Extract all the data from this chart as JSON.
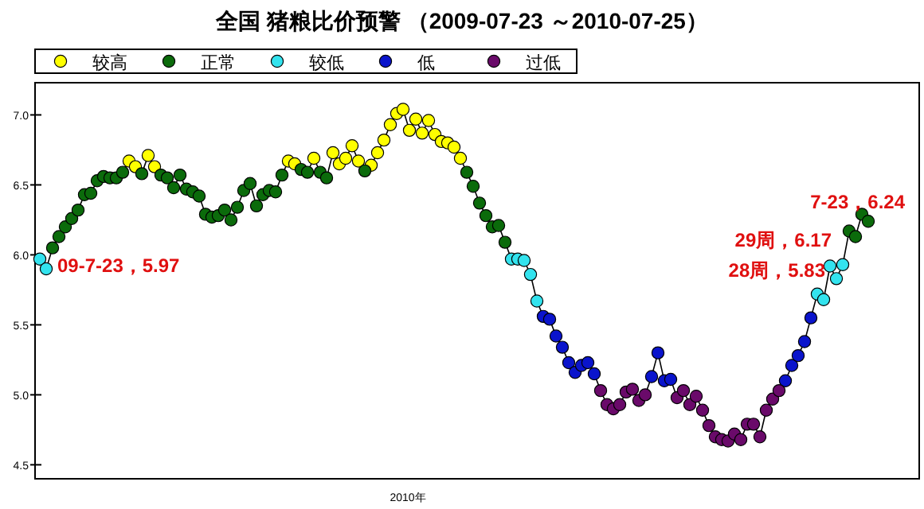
{
  "chart_data": {
    "type": "scatter",
    "title": "全国 猪粮比价预警 （2009-07-23 ～2010-07-25）",
    "categories": [
      null,
      null,
      null,
      null,
      null,
      null,
      null,
      null,
      null,
      null,
      null,
      null,
      null,
      null,
      null,
      null,
      null,
      null,
      null,
      null,
      null,
      null,
      null,
      null,
      null,
      null,
      null,
      null,
      null,
      null,
      null,
      null,
      null,
      null,
      null,
      null,
      null,
      null,
      null,
      null,
      null,
      null,
      null,
      null,
      null,
      null,
      null,
      null,
      null,
      null,
      null,
      null,
      null,
      null,
      null,
      null,
      null,
      null,
      null,
      null,
      null,
      null,
      null,
      null,
      null,
      null,
      null,
      null,
      null,
      null,
      null,
      null,
      null,
      null,
      null,
      null,
      null,
      null,
      null,
      null,
      null,
      null,
      null,
      null,
      null,
      null,
      null,
      null,
      null,
      null,
      null,
      null,
      null,
      null,
      null,
      null,
      null,
      null,
      null,
      null,
      null,
      null,
      null,
      null,
      null,
      null,
      null,
      null,
      null,
      null,
      null,
      null,
      null,
      null,
      null,
      null,
      null,
      null,
      null,
      null,
      null,
      null,
      null,
      null,
      null,
      null,
      null,
      null,
      null,
      null,
      null
    ],
    "ylim": [
      4.4,
      7.23
    ],
    "yticks": [
      {
        "value": 4.5,
        "label": "4.5"
      },
      {
        "value": 5,
        "label": "5.0"
      },
      {
        "value": 5.5,
        "label": "5.5"
      },
      {
        "value": 6,
        "label": "6.0"
      },
      {
        "value": 6.5,
        "label": "6.5"
      },
      {
        "value": 7,
        "label": "7.0"
      }
    ],
    "legend": "top",
    "marker": "circle",
    "grid": false,
    "annotations": [
      "09-7-23，5.97",
      "7-23，6.24",
      "29周，6.17",
      "28周，5.83",
      "2010年"
    ],
    "series": [
      {
        "type": "line",
        "color": "#000000",
        "marker": "none",
        "values": [
          5.97,
          5.9,
          6.05,
          6.13,
          6.2,
          6.26,
          6.32,
          6.43,
          6.44,
          6.53,
          6.56,
          6.55,
          6.55,
          6.59,
          6.67,
          6.63,
          6.58,
          6.71,
          6.63,
          6.57,
          6.55,
          6.48,
          6.57,
          6.47,
          6.45,
          6.42,
          6.29,
          6.27,
          6.28,
          6.32,
          6.25,
          6.34,
          6.46,
          6.51,
          6.35,
          6.43,
          6.46,
          6.45,
          6.57,
          6.67,
          6.65,
          6.61,
          6.59,
          6.69,
          6.59,
          6.55,
          6.73,
          6.65,
          6.69,
          6.78,
          6.67,
          6.6,
          6.64,
          6.73,
          6.82,
          6.93,
          7.01,
          7.04,
          6.89,
          6.97,
          6.87,
          6.96,
          6.86,
          6.81,
          6.8,
          6.77,
          6.69,
          6.59,
          6.49,
          6.37,
          6.28,
          6.2,
          6.21,
          6.09,
          5.97,
          5.97,
          5.96,
          5.86,
          5.67,
          5.56,
          5.54,
          5.42,
          5.34,
          5.23,
          5.16,
          5.21,
          5.23,
          5.15,
          5.03,
          4.93,
          4.9,
          4.93,
          5.02,
          5.04,
          4.96,
          5.0,
          5.13,
          5.3,
          5.1,
          5.11,
          4.98,
          5.03,
          4.93,
          4.99,
          4.89,
          4.78,
          4.7,
          4.68,
          4.67,
          4.72,
          4.68,
          4.79,
          4.79,
          4.7,
          4.89,
          4.97,
          5.03,
          5.1,
          5.21,
          5.28,
          5.38,
          5.55,
          5.72,
          5.68,
          5.92,
          5.83,
          5.93,
          6.17,
          6.13,
          6.29,
          6.24
        ]
      },
      {
        "name": "较高",
        "color": "#ffff00",
        "values": [
          null,
          null,
          null,
          null,
          null,
          null,
          null,
          null,
          null,
          null,
          null,
          null,
          null,
          null,
          6.67,
          6.63,
          null,
          6.71,
          6.63,
          null,
          null,
          null,
          null,
          null,
          null,
          null,
          null,
          null,
          null,
          null,
          null,
          null,
          null,
          null,
          null,
          null,
          null,
          null,
          null,
          6.67,
          6.65,
          null,
          null,
          6.69,
          null,
          null,
          6.73,
          6.65,
          6.69,
          6.78,
          6.67,
          null,
          6.64,
          6.73,
          6.82,
          6.93,
          7.01,
          7.04,
          6.89,
          6.97,
          6.87,
          6.96,
          6.86,
          6.81,
          6.8,
          6.77,
          6.69,
          null,
          null,
          null,
          null,
          null,
          null,
          null,
          null,
          null,
          null,
          null,
          null,
          null,
          null,
          null,
          null,
          null,
          null,
          null,
          null,
          null,
          null,
          null,
          null,
          null,
          null,
          null,
          null,
          null,
          null,
          null,
          null,
          null,
          null,
          null,
          null,
          null,
          null,
          null,
          null,
          null,
          null,
          null,
          null,
          null,
          null,
          null,
          null,
          null,
          null,
          null,
          null,
          null,
          null,
          null,
          null,
          null,
          null,
          null,
          null,
          null,
          null,
          null,
          null
        ]
      },
      {
        "name": "正常",
        "color": "#0b6b0b",
        "values": [
          null,
          null,
          6.05,
          6.13,
          6.2,
          6.26,
          6.32,
          6.43,
          6.44,
          6.53,
          6.56,
          6.55,
          6.55,
          6.59,
          null,
          null,
          6.58,
          null,
          null,
          6.57,
          6.55,
          6.48,
          6.57,
          6.47,
          6.45,
          6.42,
          6.29,
          6.27,
          6.28,
          6.32,
          6.25,
          6.34,
          6.46,
          6.51,
          6.35,
          6.43,
          6.46,
          6.45,
          6.57,
          null,
          null,
          6.61,
          6.59,
          null,
          6.59,
          6.55,
          null,
          null,
          null,
          null,
          null,
          6.6,
          null,
          null,
          null,
          null,
          null,
          null,
          null,
          null,
          null,
          null,
          null,
          null,
          null,
          null,
          null,
          6.59,
          6.49,
          6.37,
          6.28,
          6.2,
          6.21,
          6.09,
          null,
          null,
          null,
          null,
          null,
          null,
          null,
          null,
          null,
          null,
          null,
          null,
          null,
          null,
          null,
          null,
          null,
          null,
          null,
          null,
          null,
          null,
          null,
          null,
          null,
          null,
          null,
          null,
          null,
          null,
          null,
          null,
          null,
          null,
          null,
          null,
          null,
          null,
          null,
          null,
          null,
          null,
          null,
          null,
          null,
          null,
          null,
          null,
          null,
          null,
          null,
          null,
          null,
          6.17,
          6.13,
          6.29,
          6.24
        ]
      },
      {
        "name": "较低",
        "color": "#33e3ee",
        "values": [
          5.97,
          5.9,
          null,
          null,
          null,
          null,
          null,
          null,
          null,
          null,
          null,
          null,
          null,
          null,
          null,
          null,
          null,
          null,
          null,
          null,
          null,
          null,
          null,
          null,
          null,
          null,
          null,
          null,
          null,
          null,
          null,
          null,
          null,
          null,
          null,
          null,
          null,
          null,
          null,
          null,
          null,
          null,
          null,
          null,
          null,
          null,
          null,
          null,
          null,
          null,
          null,
          null,
          null,
          null,
          null,
          null,
          null,
          null,
          null,
          null,
          null,
          null,
          null,
          null,
          null,
          null,
          null,
          null,
          null,
          null,
          null,
          null,
          null,
          null,
          5.97,
          5.97,
          5.96,
          5.86,
          5.67,
          null,
          null,
          null,
          null,
          null,
          null,
          null,
          null,
          null,
          null,
          null,
          null,
          null,
          null,
          null,
          null,
          null,
          null,
          null,
          null,
          null,
          null,
          null,
          null,
          null,
          null,
          null,
          null,
          null,
          null,
          null,
          null,
          null,
          null,
          null,
          null,
          null,
          null,
          null,
          null,
          null,
          null,
          null,
          5.72,
          5.68,
          5.92,
          5.83,
          5.93,
          null,
          null,
          null,
          null
        ]
      },
      {
        "name": "低",
        "color": "#0a14cc",
        "values": [
          null,
          null,
          null,
          null,
          null,
          null,
          null,
          null,
          null,
          null,
          null,
          null,
          null,
          null,
          null,
          null,
          null,
          null,
          null,
          null,
          null,
          null,
          null,
          null,
          null,
          null,
          null,
          null,
          null,
          null,
          null,
          null,
          null,
          null,
          null,
          null,
          null,
          null,
          null,
          null,
          null,
          null,
          null,
          null,
          null,
          null,
          null,
          null,
          null,
          null,
          null,
          null,
          null,
          null,
          null,
          null,
          null,
          null,
          null,
          null,
          null,
          null,
          null,
          null,
          null,
          null,
          null,
          null,
          null,
          null,
          null,
          null,
          null,
          null,
          null,
          null,
          null,
          null,
          null,
          5.56,
          5.54,
          5.42,
          5.34,
          5.23,
          5.16,
          5.21,
          5.23,
          5.15,
          null,
          null,
          null,
          null,
          null,
          null,
          null,
          null,
          5.13,
          5.3,
          5.1,
          5.11,
          null,
          null,
          null,
          null,
          null,
          null,
          null,
          null,
          null,
          null,
          null,
          null,
          null,
          null,
          null,
          null,
          null,
          5.1,
          5.21,
          5.28,
          5.38,
          5.55,
          null,
          null,
          null,
          null,
          null,
          null,
          null,
          null,
          null
        ]
      },
      {
        "name": "过低",
        "color": "#6a0a6a",
        "values": [
          null,
          null,
          null,
          null,
          null,
          null,
          null,
          null,
          null,
          null,
          null,
          null,
          null,
          null,
          null,
          null,
          null,
          null,
          null,
          null,
          null,
          null,
          null,
          null,
          null,
          null,
          null,
          null,
          null,
          null,
          null,
          null,
          null,
          null,
          null,
          null,
          null,
          null,
          null,
          null,
          null,
          null,
          null,
          null,
          null,
          null,
          null,
          null,
          null,
          null,
          null,
          null,
          null,
          null,
          null,
          null,
          null,
          null,
          null,
          null,
          null,
          null,
          null,
          null,
          null,
          null,
          null,
          null,
          null,
          null,
          null,
          null,
          null,
          null,
          null,
          null,
          null,
          null,
          null,
          null,
          null,
          null,
          null,
          null,
          null,
          null,
          null,
          null,
          5.03,
          4.93,
          4.9,
          4.93,
          5.02,
          5.04,
          4.96,
          5.0,
          null,
          null,
          null,
          null,
          4.98,
          5.03,
          4.93,
          4.99,
          4.89,
          4.78,
          4.7,
          4.68,
          4.67,
          4.72,
          4.68,
          4.79,
          4.79,
          4.7,
          4.89,
          4.97,
          5.03,
          null,
          null,
          null,
          null,
          null,
          null,
          null,
          null,
          null,
          null,
          null,
          null,
          null,
          null
        ]
      }
    ]
  }
}
